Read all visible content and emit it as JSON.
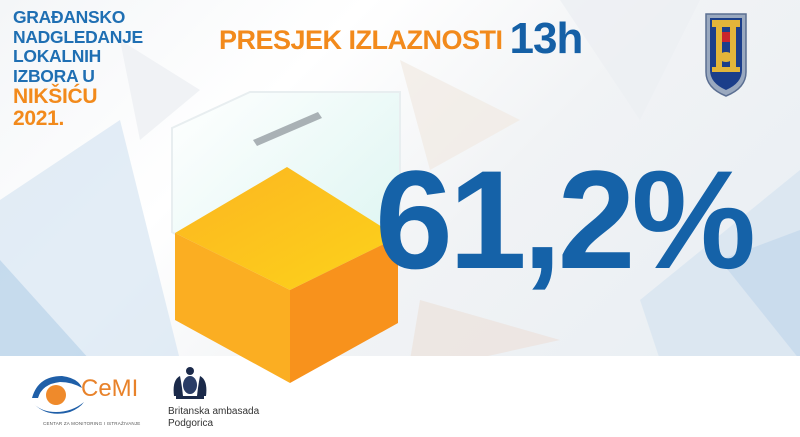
{
  "title_block": {
    "line1": "GRAĐANSKO",
    "line2": "NADGLEDANJE",
    "line3": "LOKALNIH",
    "line4": "IZBORA U",
    "line5": "NIKŠIĆU",
    "line6": "2021."
  },
  "headline": {
    "label": "PRESJEK IZLAZNOSTI",
    "time": "13h"
  },
  "turnout": {
    "value_text": "61,2%",
    "percent": 61.2
  },
  "logos": {
    "cemi_name": "CeMI",
    "cemi_subtitle": "CENTAR ZA MONITORING I ISTRAŽIVANJE",
    "embassy_line1": "Britanska ambasada",
    "embassy_line2": "Podgorica"
  },
  "colors": {
    "brand_blue": "#1562a8",
    "brand_orange": "#f28a1c",
    "cube_top": "#fcc21b",
    "cube_left": "#fbaf22",
    "cube_right": "#f8921c"
  },
  "icons": [
    "niksic-coat-of-arms-icon",
    "ballot-box-icon",
    "cemi-logo-icon",
    "uk-royal-arms-icon"
  ]
}
